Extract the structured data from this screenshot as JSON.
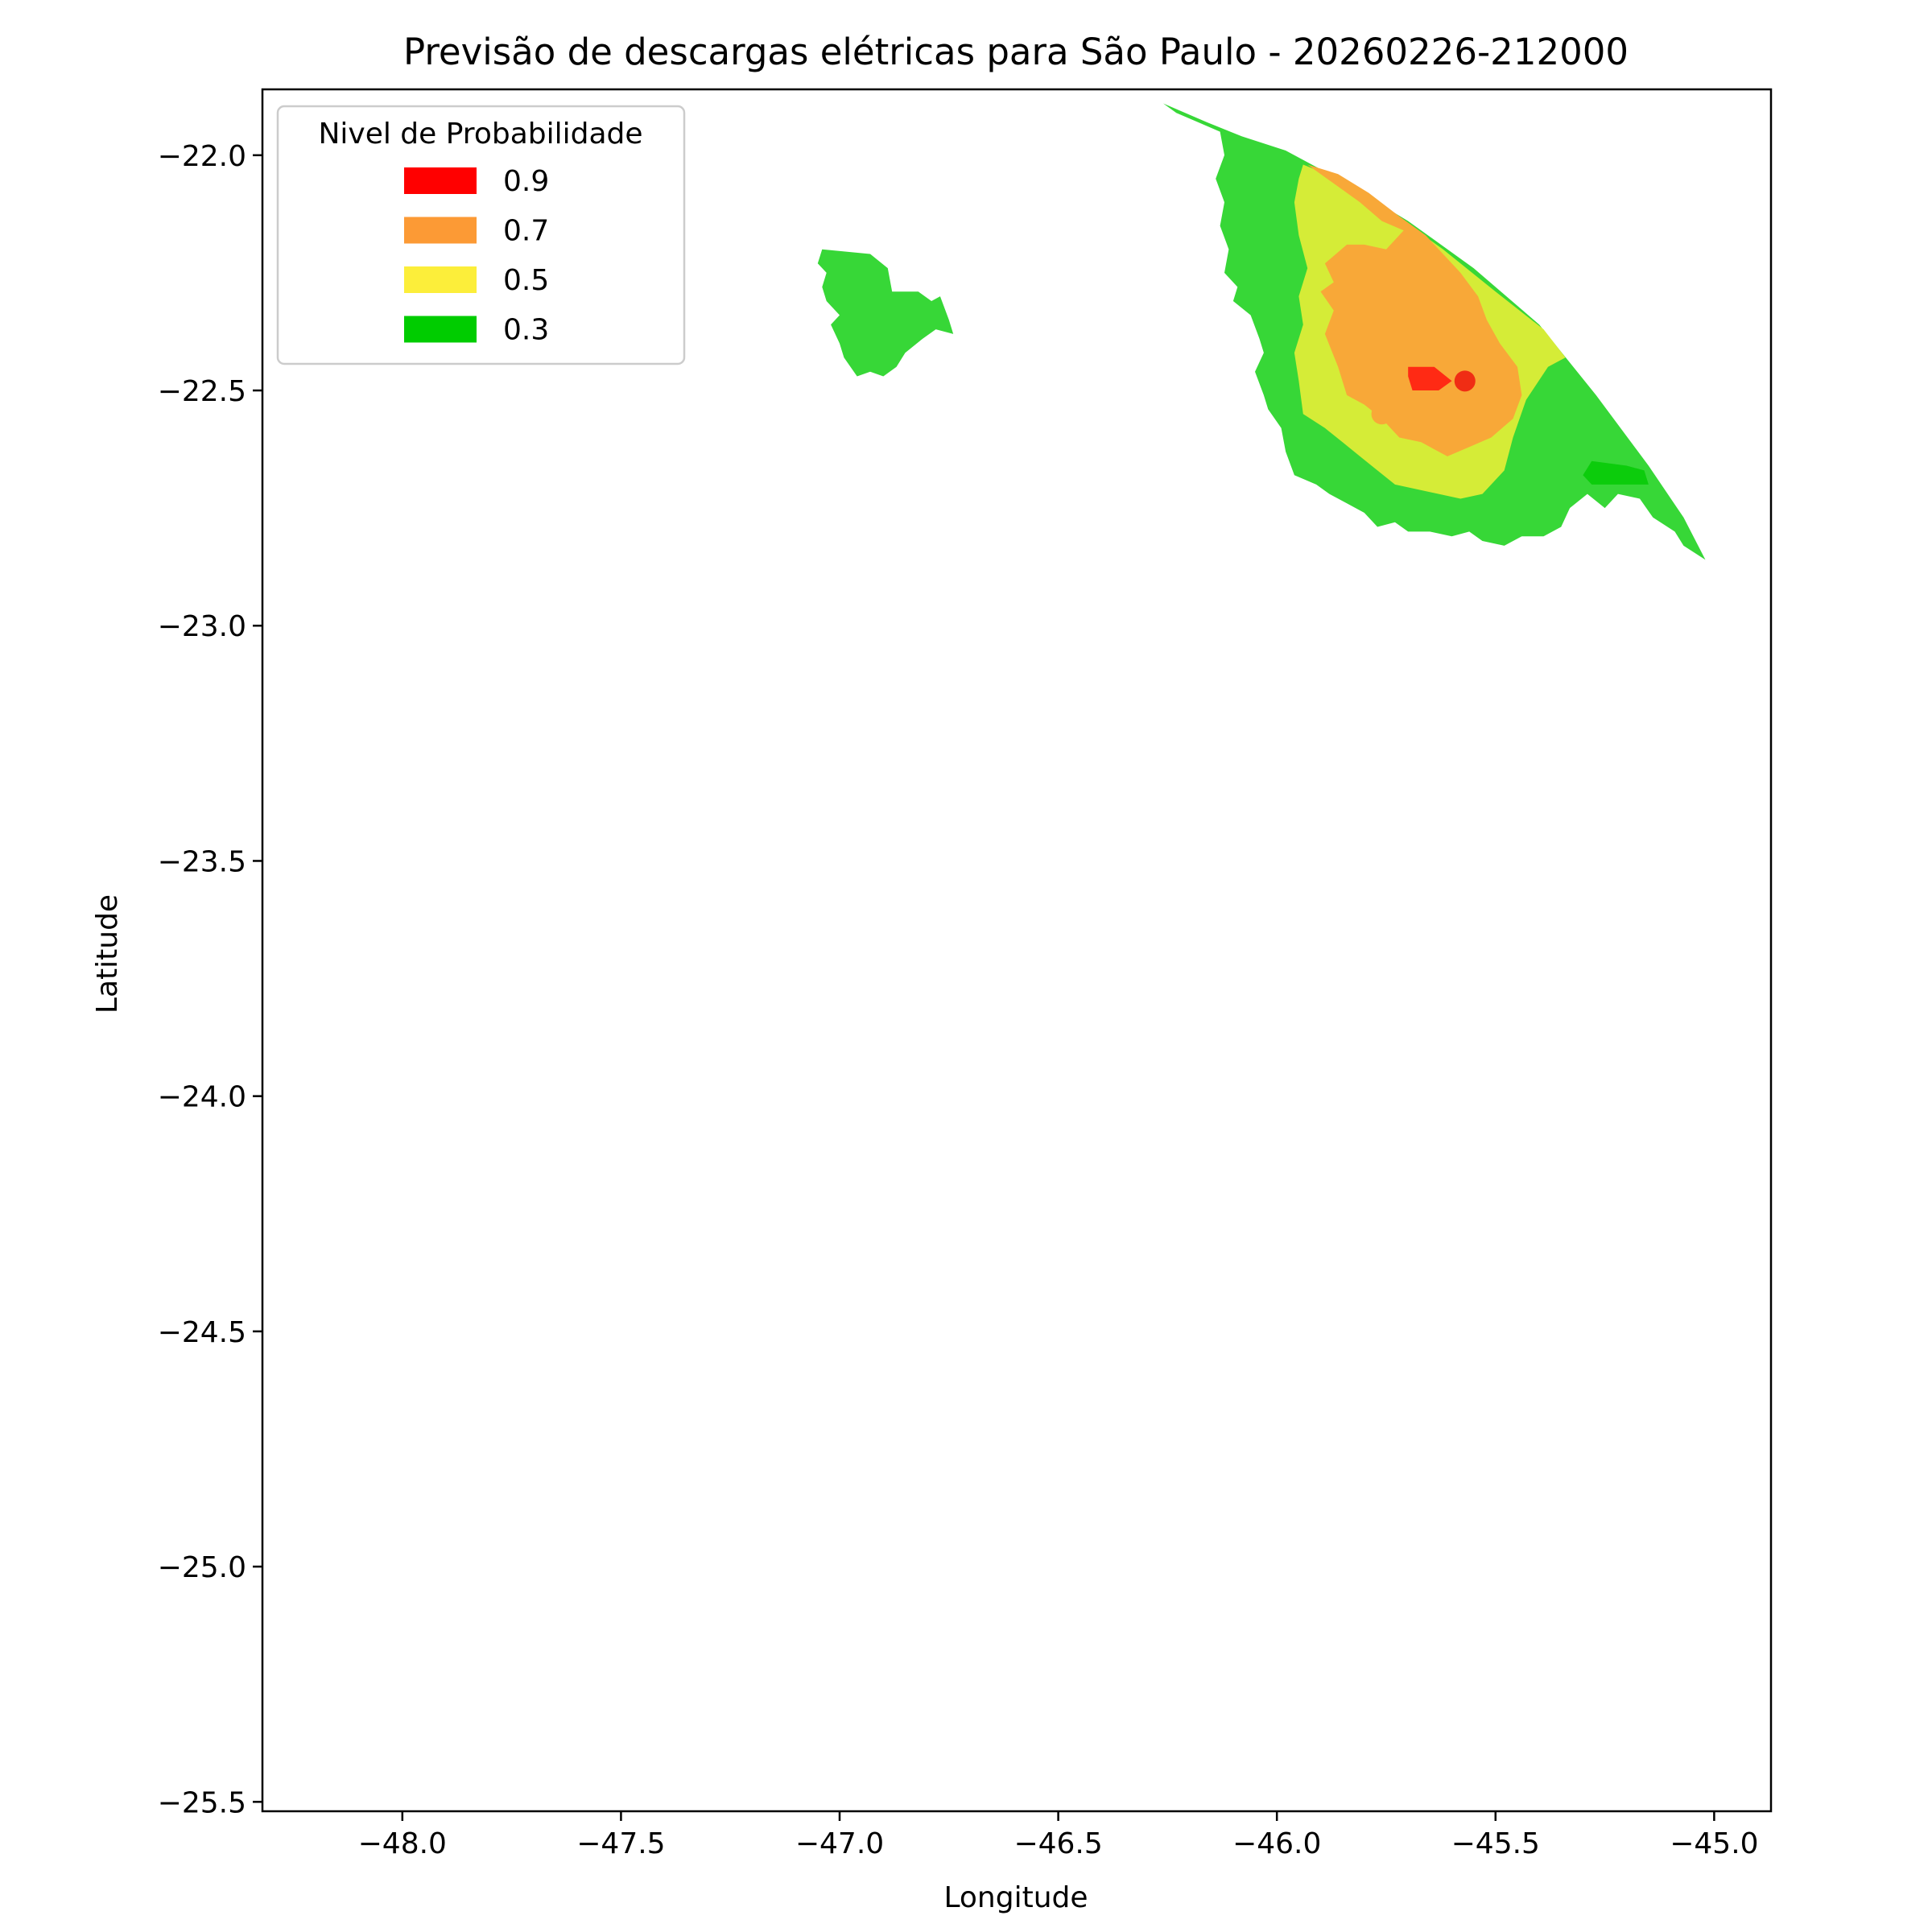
{
  "chart_data": {
    "type": "contour-map",
    "title": "Previsão de descargas elétricas para São Paulo - 20260226-212000",
    "xlabel": "Longitude",
    "ylabel": "Latitude",
    "xlim": [
      -48.32,
      -44.87
    ],
    "ylim": [
      -25.52,
      -21.86
    ],
    "xticks": [
      -48.0,
      -47.5,
      -47.0,
      -46.5,
      -46.0,
      -45.5,
      -45.0
    ],
    "yticks": [
      -22.0,
      -22.5,
      -23.0,
      -23.5,
      -24.0,
      -24.5,
      -25.0,
      -25.5
    ],
    "xtick_labels": [
      "−48.0",
      "−47.5",
      "−47.0",
      "−46.5",
      "−46.0",
      "−45.5",
      "−45.0"
    ],
    "ytick_labels": [
      "−22.0",
      "−22.5",
      "−23.0",
      "−23.5",
      "−24.0",
      "−24.5",
      "−25.0",
      "−25.5"
    ],
    "legend": {
      "title": "Nivel de Probabilidade",
      "position": "upper-left",
      "entries": [
        {
          "label": "0.9",
          "color": "#ff0000"
        },
        {
          "label": "0.7",
          "color": "#fc9a35"
        },
        {
          "label": "0.5",
          "color": "#fcee3a"
        },
        {
          "label": "0.3",
          "color": "#00cc00"
        }
      ]
    },
    "regions": [
      {
        "name": "west-cell-0.3",
        "level": "0.3",
        "color": "#37d737",
        "points": [
          [
            -47.04,
            -22.2
          ],
          [
            -46.93,
            -22.21
          ],
          [
            -46.89,
            -22.24
          ],
          [
            -46.88,
            -22.29
          ],
          [
            -46.82,
            -22.29
          ],
          [
            -46.79,
            -22.31
          ],
          [
            -46.77,
            -22.3
          ],
          [
            -46.75,
            -22.35
          ],
          [
            -46.74,
            -22.38
          ],
          [
            -46.78,
            -22.37
          ],
          [
            -46.81,
            -22.39
          ],
          [
            -46.85,
            -22.42
          ],
          [
            -46.87,
            -22.45
          ],
          [
            -46.9,
            -22.47
          ],
          [
            -46.93,
            -22.46
          ],
          [
            -46.96,
            -22.47
          ],
          [
            -46.99,
            -22.43
          ],
          [
            -47.0,
            -22.4
          ],
          [
            -47.02,
            -22.36
          ],
          [
            -47.0,
            -22.34
          ],
          [
            -47.03,
            -22.31
          ],
          [
            -47.04,
            -22.28
          ],
          [
            -47.03,
            -22.25
          ],
          [
            -47.05,
            -22.23
          ]
        ]
      },
      {
        "name": "east-cell-0.3",
        "level": "0.3",
        "color": "#37d737",
        "points": [
          [
            -46.26,
            -21.89
          ],
          [
            -46.16,
            -21.93
          ],
          [
            -46.08,
            -21.96
          ],
          [
            -45.98,
            -21.99
          ],
          [
            -45.86,
            -22.05
          ],
          [
            -45.7,
            -22.14
          ],
          [
            -45.55,
            -22.24
          ],
          [
            -45.4,
            -22.36
          ],
          [
            -45.27,
            -22.51
          ],
          [
            -45.15,
            -22.66
          ],
          [
            -45.07,
            -22.77
          ],
          [
            -45.02,
            -22.86
          ],
          [
            -45.07,
            -22.83
          ],
          [
            -45.09,
            -22.8
          ],
          [
            -45.14,
            -22.77
          ],
          [
            -45.17,
            -22.73
          ],
          [
            -45.22,
            -22.72
          ],
          [
            -45.25,
            -22.75
          ],
          [
            -45.29,
            -22.72
          ],
          [
            -45.33,
            -22.75
          ],
          [
            -45.35,
            -22.79
          ],
          [
            -45.39,
            -22.81
          ],
          [
            -45.44,
            -22.81
          ],
          [
            -45.48,
            -22.83
          ],
          [
            -45.53,
            -22.82
          ],
          [
            -45.56,
            -22.8
          ],
          [
            -45.6,
            -22.81
          ],
          [
            -45.65,
            -22.8
          ],
          [
            -45.7,
            -22.8
          ],
          [
            -45.73,
            -22.78
          ],
          [
            -45.77,
            -22.79
          ],
          [
            -45.8,
            -22.76
          ],
          [
            -45.84,
            -22.74
          ],
          [
            -45.88,
            -22.72
          ],
          [
            -45.91,
            -22.7
          ],
          [
            -45.96,
            -22.68
          ],
          [
            -45.98,
            -22.63
          ],
          [
            -45.99,
            -22.58
          ],
          [
            -46.02,
            -22.54
          ],
          [
            -46.03,
            -22.51
          ],
          [
            -46.05,
            -22.46
          ],
          [
            -46.03,
            -22.42
          ],
          [
            -46.04,
            -22.39
          ],
          [
            -46.06,
            -22.34
          ],
          [
            -46.1,
            -22.31
          ],
          [
            -46.09,
            -22.28
          ],
          [
            -46.12,
            -22.25
          ],
          [
            -46.11,
            -22.2
          ],
          [
            -46.13,
            -22.15
          ],
          [
            -46.12,
            -22.1
          ],
          [
            -46.14,
            -22.05
          ],
          [
            -46.12,
            -22.0
          ],
          [
            -46.13,
            -21.95
          ],
          [
            -46.18,
            -21.93
          ],
          [
            -46.23,
            -21.91
          ]
        ]
      },
      {
        "name": "east-cell-0.5",
        "level": "0.5",
        "color": "#d5ec37",
        "points": [
          [
            -45.94,
            -22.02
          ],
          [
            -45.86,
            -22.05
          ],
          [
            -45.74,
            -22.12
          ],
          [
            -45.62,
            -22.2
          ],
          [
            -45.5,
            -22.29
          ],
          [
            -45.39,
            -22.37
          ],
          [
            -45.34,
            -22.43
          ],
          [
            -45.38,
            -22.45
          ],
          [
            -45.43,
            -22.52
          ],
          [
            -45.46,
            -22.6
          ],
          [
            -45.48,
            -22.67
          ],
          [
            -45.53,
            -22.72
          ],
          [
            -45.58,
            -22.73
          ],
          [
            -45.63,
            -22.72
          ],
          [
            -45.68,
            -22.71
          ],
          [
            -45.73,
            -22.7
          ],
          [
            -45.77,
            -22.67
          ],
          [
            -45.81,
            -22.64
          ],
          [
            -45.85,
            -22.61
          ],
          [
            -45.89,
            -22.58
          ],
          [
            -45.94,
            -22.55
          ],
          [
            -45.95,
            -22.48
          ],
          [
            -45.96,
            -22.42
          ],
          [
            -45.94,
            -22.36
          ],
          [
            -45.95,
            -22.3
          ],
          [
            -45.93,
            -22.24
          ],
          [
            -45.95,
            -22.17
          ],
          [
            -45.96,
            -22.1
          ],
          [
            -45.95,
            -22.05
          ]
        ]
      },
      {
        "name": "east-cell-0.7",
        "level": "0.7",
        "color": "#f8a838",
        "points": [
          [
            -45.93,
            -22.02
          ],
          [
            -45.87,
            -22.06
          ],
          [
            -45.81,
            -22.1
          ],
          [
            -45.76,
            -22.14
          ],
          [
            -45.71,
            -22.16
          ],
          [
            -45.75,
            -22.2
          ],
          [
            -45.8,
            -22.19
          ],
          [
            -45.84,
            -22.19
          ],
          [
            -45.89,
            -22.23
          ],
          [
            -45.87,
            -22.27
          ],
          [
            -45.9,
            -22.29
          ],
          [
            -45.87,
            -22.33
          ],
          [
            -45.89,
            -22.38
          ],
          [
            -45.86,
            -22.45
          ],
          [
            -45.84,
            -22.51
          ],
          [
            -45.8,
            -22.53
          ],
          [
            -45.76,
            -22.56
          ],
          [
            -45.72,
            -22.6
          ],
          [
            -45.67,
            -22.61
          ],
          [
            -45.61,
            -22.64
          ],
          [
            -45.56,
            -22.62
          ],
          [
            -45.51,
            -22.6
          ],
          [
            -45.46,
            -22.56
          ],
          [
            -45.44,
            -22.51
          ],
          [
            -45.45,
            -22.45
          ],
          [
            -45.49,
            -22.4
          ],
          [
            -45.52,
            -22.35
          ],
          [
            -45.54,
            -22.3
          ],
          [
            -45.58,
            -22.25
          ],
          [
            -45.62,
            -22.21
          ],
          [
            -45.66,
            -22.17
          ],
          [
            -45.72,
            -22.13
          ],
          [
            -45.79,
            -22.08
          ],
          [
            -45.86,
            -22.04
          ]
        ]
      },
      {
        "name": "east-cell-0.9",
        "level": "0.9",
        "color": "#ff2a14",
        "points": [
          [
            -45.7,
            -22.45
          ],
          [
            -45.64,
            -22.45
          ],
          [
            -45.6,
            -22.48
          ],
          [
            -45.63,
            -22.5
          ],
          [
            -45.69,
            -22.5
          ],
          [
            -45.7,
            -22.47
          ]
        ]
      },
      {
        "name": "east-cell-inner-0.3",
        "level": "0.3",
        "color": "#0ccc0c",
        "points": [
          [
            -45.28,
            -22.65
          ],
          [
            -45.2,
            -22.66
          ],
          [
            -45.16,
            -22.67
          ],
          [
            -45.15,
            -22.7
          ],
          [
            -45.22,
            -22.7
          ],
          [
            -45.28,
            -22.7
          ],
          [
            -45.3,
            -22.68
          ]
        ]
      }
    ],
    "markers": [
      {
        "lon": -45.57,
        "lat": -22.48,
        "color": "#f02d14"
      },
      {
        "lon": -45.76,
        "lat": -22.55,
        "color": "#f8a838"
      }
    ]
  }
}
